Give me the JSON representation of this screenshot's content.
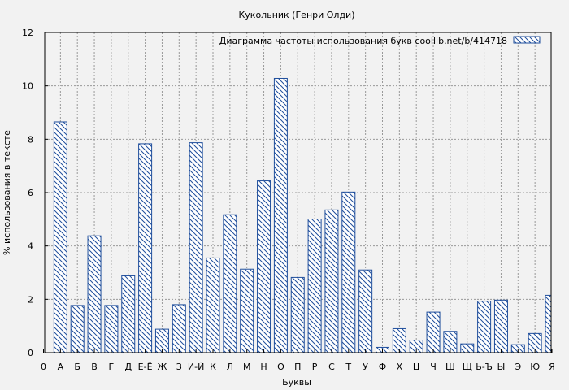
{
  "chart_data": {
    "type": "bar",
    "title": "Кукольник (Генри Олди)",
    "xlabel": "Буквы",
    "ylabel": "% использования в тексте",
    "legend": {
      "label": "Диаграмма частоты использования букв  coollib.net/b/414718",
      "position": "top-right"
    },
    "ylim": [
      0,
      12
    ],
    "yticks": [
      "0",
      "2",
      "4",
      "6",
      "8",
      "10",
      "12"
    ],
    "grid": true,
    "categories": [
      "0",
      "А",
      "Б",
      "В",
      "Г",
      "Д",
      "Е-Ё",
      "Ж",
      "З",
      "И-Й",
      "К",
      "Л",
      "М",
      "Н",
      "О",
      "П",
      "Р",
      "С",
      "Т",
      "У",
      "Ф",
      "Х",
      "Ц",
      "Ч",
      "Ш",
      "Щ",
      "Ь-Ъ",
      "Ы",
      "Э",
      "Ю",
      "Я"
    ],
    "values": [
      0,
      8.65,
      1.77,
      4.38,
      1.77,
      2.88,
      7.83,
      0.88,
      1.8,
      7.87,
      3.55,
      5.17,
      3.13,
      6.44,
      10.28,
      2.82,
      5.01,
      5.35,
      6.02,
      3.1,
      0.2,
      0.9,
      0.47,
      1.52,
      0.8,
      0.33,
      1.93,
      1.97,
      0.3,
      0.72,
      2.15
    ],
    "bar_color": "#1f4e9c",
    "background": "#f2f2f2"
  }
}
